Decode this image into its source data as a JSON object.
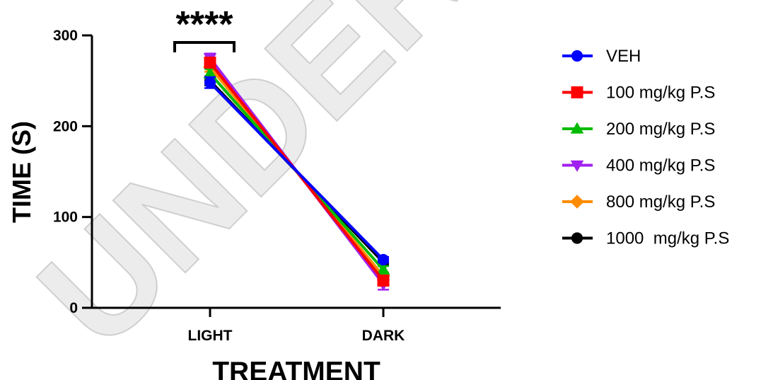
{
  "watermark": "UNDER P",
  "chart_data": {
    "type": "line",
    "categories": [
      "LIGHT",
      "DARK"
    ],
    "xlabel": "TREATMENT",
    "ylabel": "TIME (S)",
    "ylim": [
      0,
      300
    ],
    "yticks": [
      0,
      100,
      200,
      300
    ],
    "legend_position": "right",
    "grid": false,
    "annotation": {
      "text": "****",
      "category": "LIGHT"
    },
    "series": [
      {
        "name": "VEH",
        "color": "#0000ff",
        "marker": "circle",
        "values": [
          248,
          53
        ],
        "errors": [
          6,
          3
        ]
      },
      {
        "name": "100 mg/kg P.S",
        "color": "#ff0000",
        "marker": "square",
        "values": [
          270,
          30
        ],
        "errors": [
          5,
          4
        ]
      },
      {
        "name": "200 mg/kg P.S",
        "color": "#00bb00",
        "marker": "triangle-up",
        "values": [
          258,
          42
        ],
        "errors": [
          5,
          4
        ]
      },
      {
        "name": "400 mg/kg P.S",
        "color": "#a020f0",
        "marker": "triangle-down",
        "values": [
          275,
          26
        ],
        "errors": [
          5,
          6
        ]
      },
      {
        "name": "800 mg/kg P.S",
        "color": "#ff8c00",
        "marker": "diamond",
        "values": [
          265,
          35
        ],
        "errors": [
          5,
          4
        ]
      },
      {
        "name": "1000  mg/kg P.S",
        "color": "#000000",
        "marker": "circle",
        "values": [
          250,
          50
        ],
        "errors": [
          5,
          3
        ]
      }
    ]
  }
}
